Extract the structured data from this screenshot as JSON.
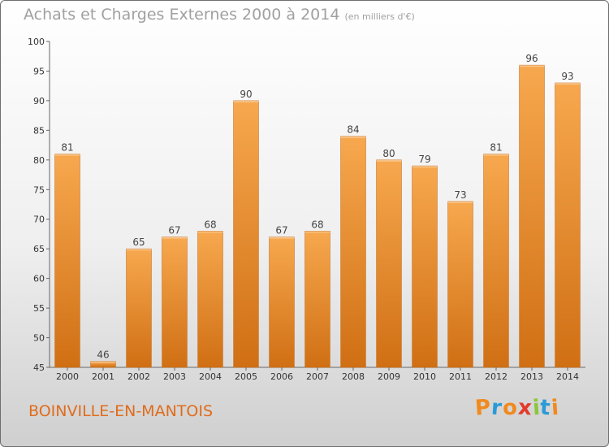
{
  "chart_data": {
    "type": "bar",
    "title": "Achats et Charges Externes 2000 à 2014",
    "subtitle": "(en milliers d'€)",
    "categories": [
      "2000",
      "2001",
      "2002",
      "2003",
      "2004",
      "2005",
      "2006",
      "2007",
      "2008",
      "2009",
      "2010",
      "2011",
      "2012",
      "2013",
      "2014"
    ],
    "values": [
      81,
      46,
      65,
      67,
      68,
      90,
      67,
      68,
      84,
      80,
      79,
      73,
      81,
      96,
      93
    ],
    "ylim": [
      45,
      100
    ],
    "yticks": [
      45,
      50,
      55,
      60,
      65,
      70,
      75,
      80,
      85,
      90,
      95,
      100
    ],
    "grid": false,
    "xlabel": "",
    "ylabel": "",
    "colors": {
      "bar_light": "#f7a84e",
      "bar_dark": "#d06f14"
    }
  },
  "footer": {
    "commune": "BOINVILLE-EN-MANTOIS",
    "brand": {
      "text": "Proxiti",
      "letters": [
        {
          "char": "P",
          "color": "#f08a1e"
        },
        {
          "char": "r",
          "color": "#2a9bd6"
        },
        {
          "char": "o",
          "color": "#f08a1e"
        },
        {
          "char": "x",
          "color": "#e23a2a"
        },
        {
          "char": "i",
          "color": "#8cc63f"
        },
        {
          "char": "t",
          "color": "#2a9bd6"
        },
        {
          "char": "i",
          "color": "#f08a1e"
        }
      ]
    }
  }
}
